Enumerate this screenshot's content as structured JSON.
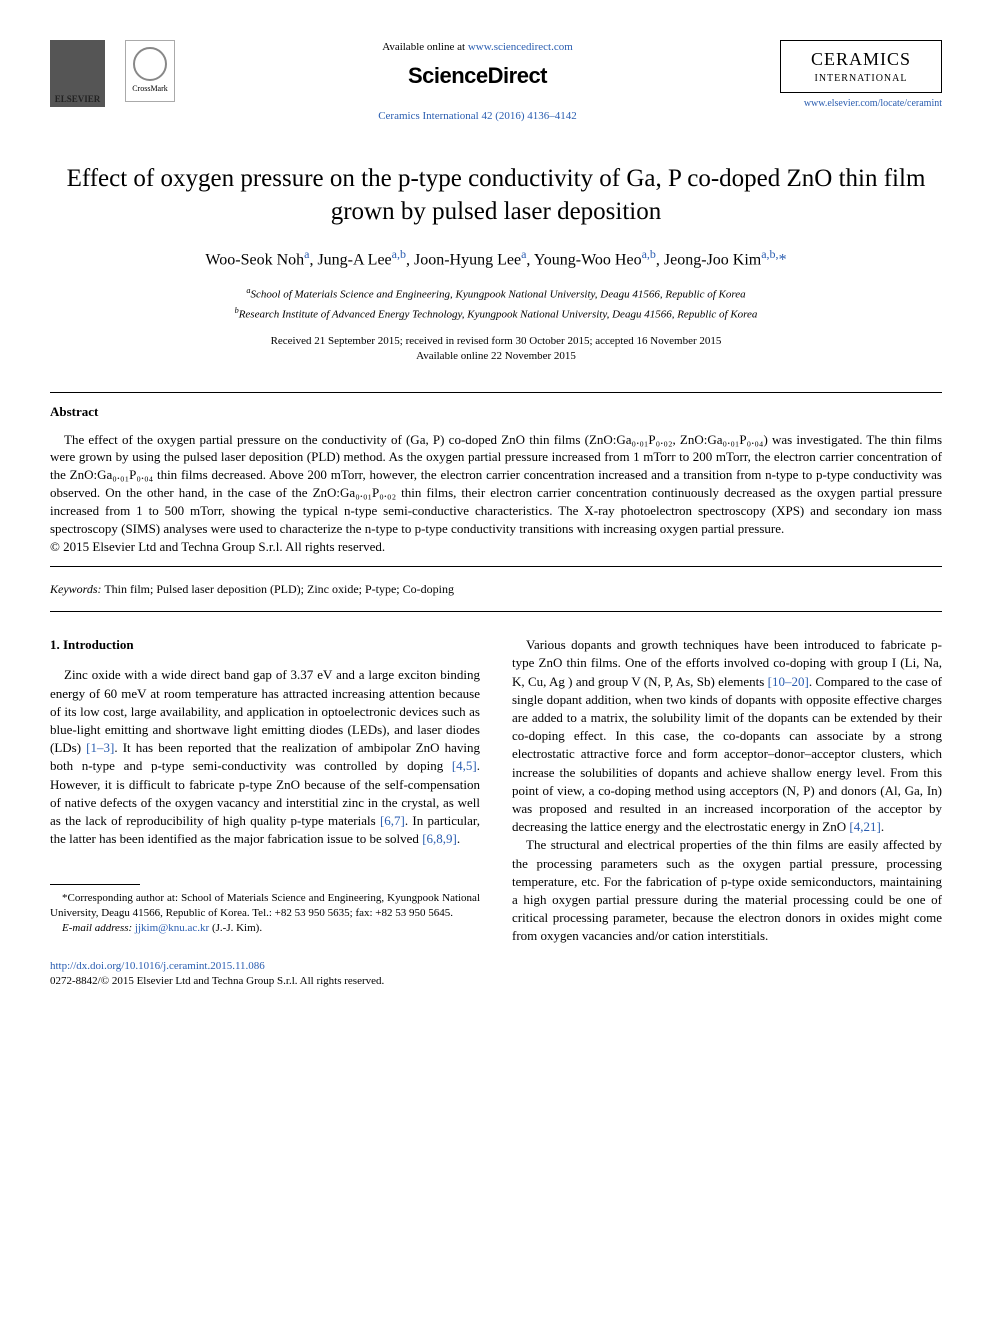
{
  "header": {
    "available_text": "Available online at ",
    "sciencedirect_url": "www.sciencedirect.com",
    "brand": "ScienceDirect",
    "journal_ref_prefix": "Ceramics International 42 (2016) 4136–4142",
    "locate_url": "www.elsevier.com/locate/ceramint",
    "elsevier_label": "ELSEVIER",
    "crossmark_label": "CrossMark",
    "ceramics_title": "CERAMICS",
    "ceramics_sub": "INTERNATIONAL"
  },
  "title": "Effect of oxygen pressure on the p-type conductivity of Ga, P co-doped ZnO thin film grown by pulsed laser deposition",
  "authors_html": "Woo-Seok Noh<sup>a</sup>, Jung-A Lee<sup>a,b</sup>, Joon-Hyung Lee<sup>a</sup>, Young-Woo Heo<sup>a,b</sup>, Jeong-Joo Kim<sup>a,b,</sup>*",
  "affiliations": {
    "a": "School of Materials Science and Engineering, Kyungpook National University, Deagu 41566, Republic of Korea",
    "b": "Research Institute of Advanced Energy Technology, Kyungpook National University, Deagu 41566, Republic of Korea"
  },
  "dates": {
    "line1": "Received 21 September 2015; received in revised form 30 October 2015; accepted 16 November 2015",
    "line2": "Available online 22 November 2015"
  },
  "abstract": {
    "heading": "Abstract",
    "p1": "The effect of the oxygen partial pressure on the conductivity of (Ga, P) co-doped ZnO thin films (ZnO:Ga₀.₀₁P₀.₀₂, ZnO:Ga₀.₀₁P₀.₀₄) was investigated. The thin films were grown by using the pulsed laser deposition (PLD) method. As the oxygen partial pressure increased from 1 mTorr to 200 mTorr, the electron carrier concentration of the ZnO:Ga₀.₀₁P₀.₀₄ thin films decreased. Above 200 mTorr, however, the electron carrier concentration increased and a transition from n-type to p-type conductivity was observed. On the other hand, in the case of the ZnO:Ga₀.₀₁P₀.₀₂ thin films, their electron carrier concentration continuously decreased as the oxygen partial pressure increased from 1 to 500 mTorr, showing the typical n-type semi-conductive characteristics. The X-ray photoelectron spectroscopy (XPS) and secondary ion mass spectroscopy (SIMS) analyses were used to characterize the n-type to p-type conductivity transitions with increasing oxygen partial pressure.",
    "copyright": "© 2015 Elsevier Ltd and Techna Group S.r.l. All rights reserved."
  },
  "keywords": {
    "label": "Keywords:",
    "text": " Thin film; Pulsed laser deposition (PLD); Zinc oxide; P-type; Co-doping"
  },
  "intro": {
    "heading": "1.  Introduction",
    "p1a": "Zinc oxide with a wide direct band gap of 3.37 eV and a large exciton binding energy of 60 meV at room temperature has attracted increasing attention because of its low cost, large availability, and application in optoelectronic devices such as blue-light emitting and shortwave light emitting diodes (LEDs), and laser diodes (LDs) ",
    "ref1": "[1–3]",
    "p1b": ". It has been reported that the realization of ambipolar ZnO having both n-type and p-type semi-conductivity was controlled by doping ",
    "ref2": "[4,5]",
    "p1c": ". However, it is difficult to fabricate p-type ZnO because of the self-compensation of native defects of the oxygen vacancy and interstitial zinc in the crystal, as well as the lack of reproducibility of high quality p-type materials ",
    "ref3": "[6,7]",
    "p1d": ". In particular, the latter has been identified as the major fabrication issue to be solved ",
    "ref4": "[6,8,9]",
    "p1e": ".",
    "p2a": "Various dopants and growth techniques have been introduced to fabricate p-type ZnO thin films. One of the efforts involved co-doping with group I (Li, Na, K, Cu, Ag ) and group V (N, P, As, Sb) elements ",
    "ref5": "[10–20]",
    "p2b": ". Compared to the case of single dopant addition, when two kinds of dopants with opposite effective charges are added to a matrix, the solubility limit of the dopants can be extended by their co-doping effect. In this case, the co-dopants can associate by a strong electrostatic attractive force and form acceptor–donor–acceptor clusters, which increase the solubilities of dopants and achieve shallow energy level. From this point of view, a co-doping method using acceptors (N, P) and donors (Al, Ga, In) was proposed and resulted in an increased incorporation of the acceptor by decreasing the lattice energy and the electrostatic energy in ZnO ",
    "ref6": "[4,21]",
    "p2c": ".",
    "p3": "The structural and electrical properties of the thin films are easily affected by the processing parameters such as the oxygen partial pressure, processing temperature, etc. For the fabrication of p-type oxide semiconductors, maintaining a high oxygen partial pressure during the material processing could be one of critical processing parameter, because the electron donors in oxides might come from oxygen vacancies and/or cation interstitials."
  },
  "footnote": {
    "corr": "*Corresponding author at: School of Materials Science and Engineering, Kyungpook National University, Deagu 41566, Republic of Korea. Tel.: +82 53 950 5635; fax: +82 53 950 5645.",
    "email_label": "E-mail address: ",
    "email": "jjkim@knu.ac.kr",
    "email_suffix": " (J.-J. Kim)."
  },
  "doi": {
    "url": "http://dx.doi.org/10.1016/j.ceramint.2015.11.086",
    "issn_line": "0272-8842/© 2015 Elsevier Ltd and Techna Group S.r.l. All rights reserved."
  },
  "colors": {
    "link": "#2a5db0",
    "text": "#000000",
    "bg": "#ffffff"
  }
}
